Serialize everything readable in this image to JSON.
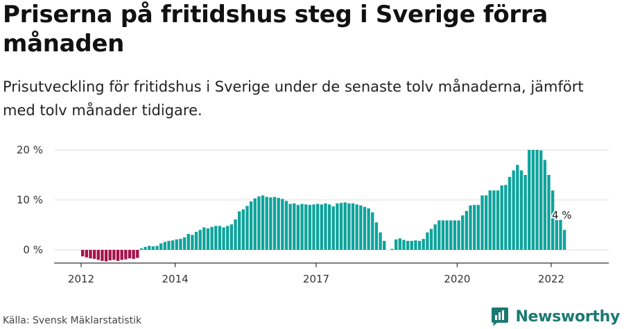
{
  "header": {
    "title": "Priserna på fritidshus steg i Sverige förra månaden",
    "subtitle": "Prisutveckling för fritidshus i Sverige under de senaste tolv månaderna, jämfört med tolv månader tidigare."
  },
  "footer": {
    "source": "Källa: Svensk Mäklarstatistik",
    "brand": "Newsworthy"
  },
  "colors": {
    "positive": "#0fa39b",
    "negative": "#a6124a",
    "brand": "#1a7a72",
    "grid": "#dddddd",
    "axis": "#333333"
  },
  "chart_data": {
    "type": "bar",
    "xlabel": "",
    "ylabel": "",
    "ylim": [
      0,
      20
    ],
    "y_ticks": [
      0,
      10,
      20
    ],
    "y_tick_labels": [
      "0 %",
      "10 %",
      "20 %"
    ],
    "x_ticks": [
      2012,
      2014,
      2017,
      2020,
      2022
    ],
    "grid": true,
    "start": "2012-01",
    "values": [
      -1.3,
      -1.5,
      -1.7,
      -1.8,
      -2.0,
      -2.2,
      -2.3,
      -2.1,
      -2.0,
      -2.2,
      -2.0,
      -1.9,
      -1.7,
      -1.8,
      -1.6,
      0.3,
      0.6,
      0.8,
      0.7,
      0.8,
      1.3,
      1.6,
      1.8,
      1.9,
      2.1,
      2.2,
      2.5,
      3.2,
      3.0,
      3.6,
      4.0,
      4.5,
      4.3,
      4.6,
      4.8,
      4.8,
      4.5,
      4.8,
      5.1,
      6.1,
      7.7,
      8.1,
      8.8,
      9.7,
      10.3,
      10.7,
      10.9,
      10.6,
      10.5,
      10.6,
      10.4,
      10.2,
      9.8,
      9.2,
      9.3,
      9.0,
      9.2,
      9.1,
      9.0,
      9.1,
      9.2,
      9.1,
      9.3,
      9.1,
      8.7,
      9.3,
      9.4,
      9.5,
      9.3,
      9.3,
      9.1,
      8.9,
      8.6,
      8.3,
      7.5,
      5.5,
      3.5,
      1.8,
      0.0,
      0.2,
      2.1,
      2.3,
      2.0,
      1.8,
      1.8,
      1.9,
      1.8,
      2.2,
      3.5,
      4.2,
      5.1,
      5.9,
      5.9,
      5.9,
      5.9,
      5.9,
      5.9,
      6.9,
      7.8,
      8.9,
      9.0,
      9.0,
      10.9,
      10.9,
      11.9,
      11.9,
      11.9,
      12.9,
      13.0,
      14.6,
      15.9,
      17.0,
      15.9,
      15.0,
      20.0,
      20.0,
      20.0,
      19.9,
      18.0,
      15.0,
      11.9,
      8.0,
      6.0,
      4.0
    ],
    "last_value_label": "4 %"
  }
}
